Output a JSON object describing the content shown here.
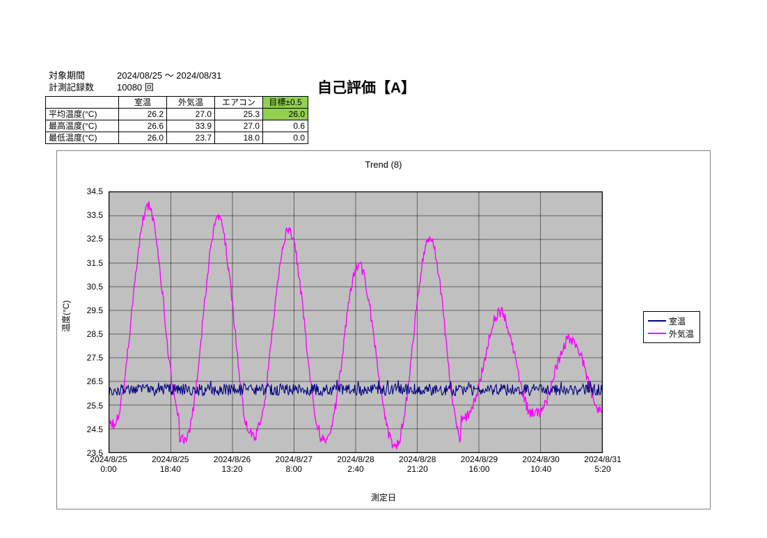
{
  "header": {
    "period_label": "対象期間",
    "period_value": "2024/08/25 ～ 2024/08/31",
    "records_label": "計測記録数",
    "records_value": "10080 回"
  },
  "self_eval": "自己評価【A】",
  "table": {
    "columns": [
      "",
      "室温",
      "外気温",
      "エアコン",
      "目標±0.5"
    ],
    "rows": [
      {
        "label": "平均温度(°C)",
        "room": "26.2",
        "out": "27.0",
        "ac": "25.3",
        "tgt": "26.0",
        "tgt_hl": true
      },
      {
        "label": "最高温度(°C)",
        "room": "26.6",
        "out": "33.9",
        "ac": "27.0",
        "tgt": "0.6",
        "tgt_hl": false
      },
      {
        "label": "最低温度(°C)",
        "room": "26.0",
        "out": "23.7",
        "ac": "18.0",
        "tgt": "0.0",
        "tgt_hl": false
      }
    ]
  },
  "chart": {
    "title": "Trend (8)",
    "y_label": "温度(°C)",
    "x_label": "測定日",
    "y_min": 23.5,
    "y_max": 34.5,
    "y_step": 1.0,
    "plot_bg": "#c0c0c0",
    "grid_color": "#000000",
    "x_ticks": [
      "2024/8/25\n0:00",
      "2024/8/25\n18:40",
      "2024/8/26\n13:20",
      "2024/8/27\n8:00",
      "2024/8/28\n2:40",
      "2024/8/28\n21:20",
      "2024/8/29\n16:00",
      "2024/8/30\n10:40",
      "2024/8/31\n5:20"
    ],
    "legend": [
      {
        "label": "室温",
        "color": "#000080"
      },
      {
        "label": "外気温",
        "color": "#ff00ff"
      }
    ],
    "series": [
      {
        "name": "室温",
        "color": "#000080",
        "width": 1.1,
        "baseline": 26.2,
        "noise_amp": 0.25,
        "noise_points": 700
      }
    ],
    "outdoor": {
      "name": "外気温",
      "color": "#ff00ff",
      "width": 1.4,
      "days": [
        {
          "low": 24.7,
          "high": 33.9
        },
        {
          "low": 24.0,
          "high": 33.3
        },
        {
          "low": 24.2,
          "high": 32.9
        },
        {
          "low": 24.0,
          "high": 31.4
        },
        {
          "low": 23.8,
          "high": 32.6
        },
        {
          "low": 25.0,
          "high": 29.4
        },
        {
          "low": 25.1,
          "high": 28.3
        }
      ],
      "noise_amp": 0.25,
      "points_per_day": 96
    }
  }
}
